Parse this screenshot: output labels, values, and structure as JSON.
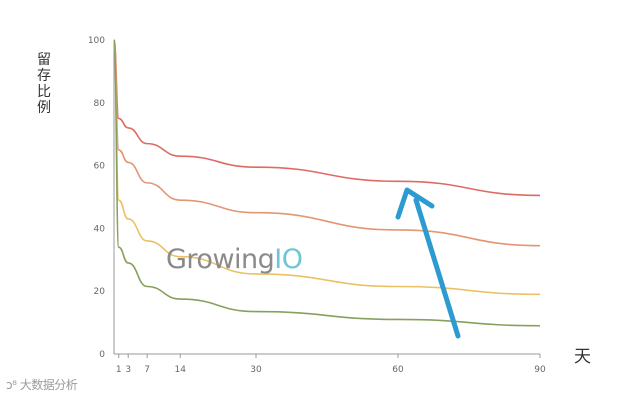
{
  "chart_data": {
    "type": "line",
    "ylabel": "留存比例",
    "xunit": "天",
    "xlim": [
      0,
      90
    ],
    "ylim": [
      0,
      100
    ],
    "xticks": [
      1,
      3,
      7,
      14,
      30,
      60,
      90
    ],
    "yticks": [
      0,
      20,
      40,
      60,
      80,
      100
    ],
    "grid": false,
    "series": [
      {
        "color": "#de6b62",
        "x": [
          0,
          1,
          3,
          7,
          14,
          30,
          60,
          90
        ],
        "y": [
          100,
          75,
          72,
          67,
          63,
          59.5,
          55,
          50.5
        ]
      },
      {
        "color": "#e39674",
        "x": [
          0,
          1,
          3,
          7,
          14,
          30,
          60,
          90
        ],
        "y": [
          100,
          65,
          61,
          54.5,
          49,
          45,
          39.5,
          34.5
        ]
      },
      {
        "color": "#ecc064",
        "x": [
          0,
          1,
          3,
          7,
          14,
          30,
          60,
          90
        ],
        "y": [
          100,
          49,
          43,
          36,
          31,
          25.5,
          21.5,
          19
        ]
      },
      {
        "color": "#87a05c",
        "x": [
          0,
          1,
          3,
          7,
          14,
          30,
          60,
          90
        ],
        "y": [
          100,
          34,
          29,
          21.5,
          17.5,
          13.5,
          11,
          9
        ]
      }
    ],
    "arrow": {
      "color": "#2b9bd2"
    }
  },
  "logo": {
    "main": "Growing",
    "accent": "IO"
  },
  "watermark": "大数据分析"
}
